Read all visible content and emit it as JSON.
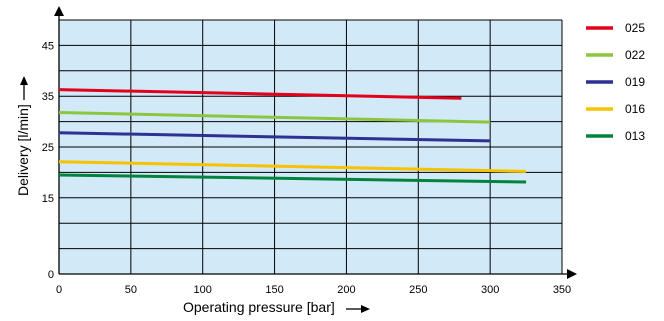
{
  "chart_data": {
    "type": "line",
    "xlabel": "Operating pressure [bar]",
    "ylabel": "Delivery [l/min]",
    "xlim": [
      0,
      350
    ],
    "ylim": [
      0,
      50
    ],
    "x_ticks": [
      "0",
      "50",
      "100",
      "150",
      "200",
      "250",
      "300",
      "350"
    ],
    "y_ticks": [
      "0",
      "15",
      "25",
      "35",
      "45"
    ],
    "grid": true,
    "plot_background": "#d2e9f8",
    "legend_position": "right",
    "series": [
      {
        "name": "025",
        "color": "#e2001a",
        "x": [
          0,
          280
        ],
        "y": [
          36.3,
          34.6
        ]
      },
      {
        "name": "022",
        "color": "#8cc63f",
        "x": [
          0,
          300
        ],
        "y": [
          31.8,
          29.9
        ]
      },
      {
        "name": "019",
        "color": "#2e3192",
        "x": [
          0,
          300
        ],
        "y": [
          27.8,
          26.2
        ]
      },
      {
        "name": "016",
        "color": "#f7c200",
        "x": [
          0,
          325
        ],
        "y": [
          22.1,
          20.2
        ]
      },
      {
        "name": "013",
        "color": "#00843d",
        "x": [
          0,
          325
        ],
        "y": [
          19.5,
          18.1
        ]
      }
    ]
  }
}
